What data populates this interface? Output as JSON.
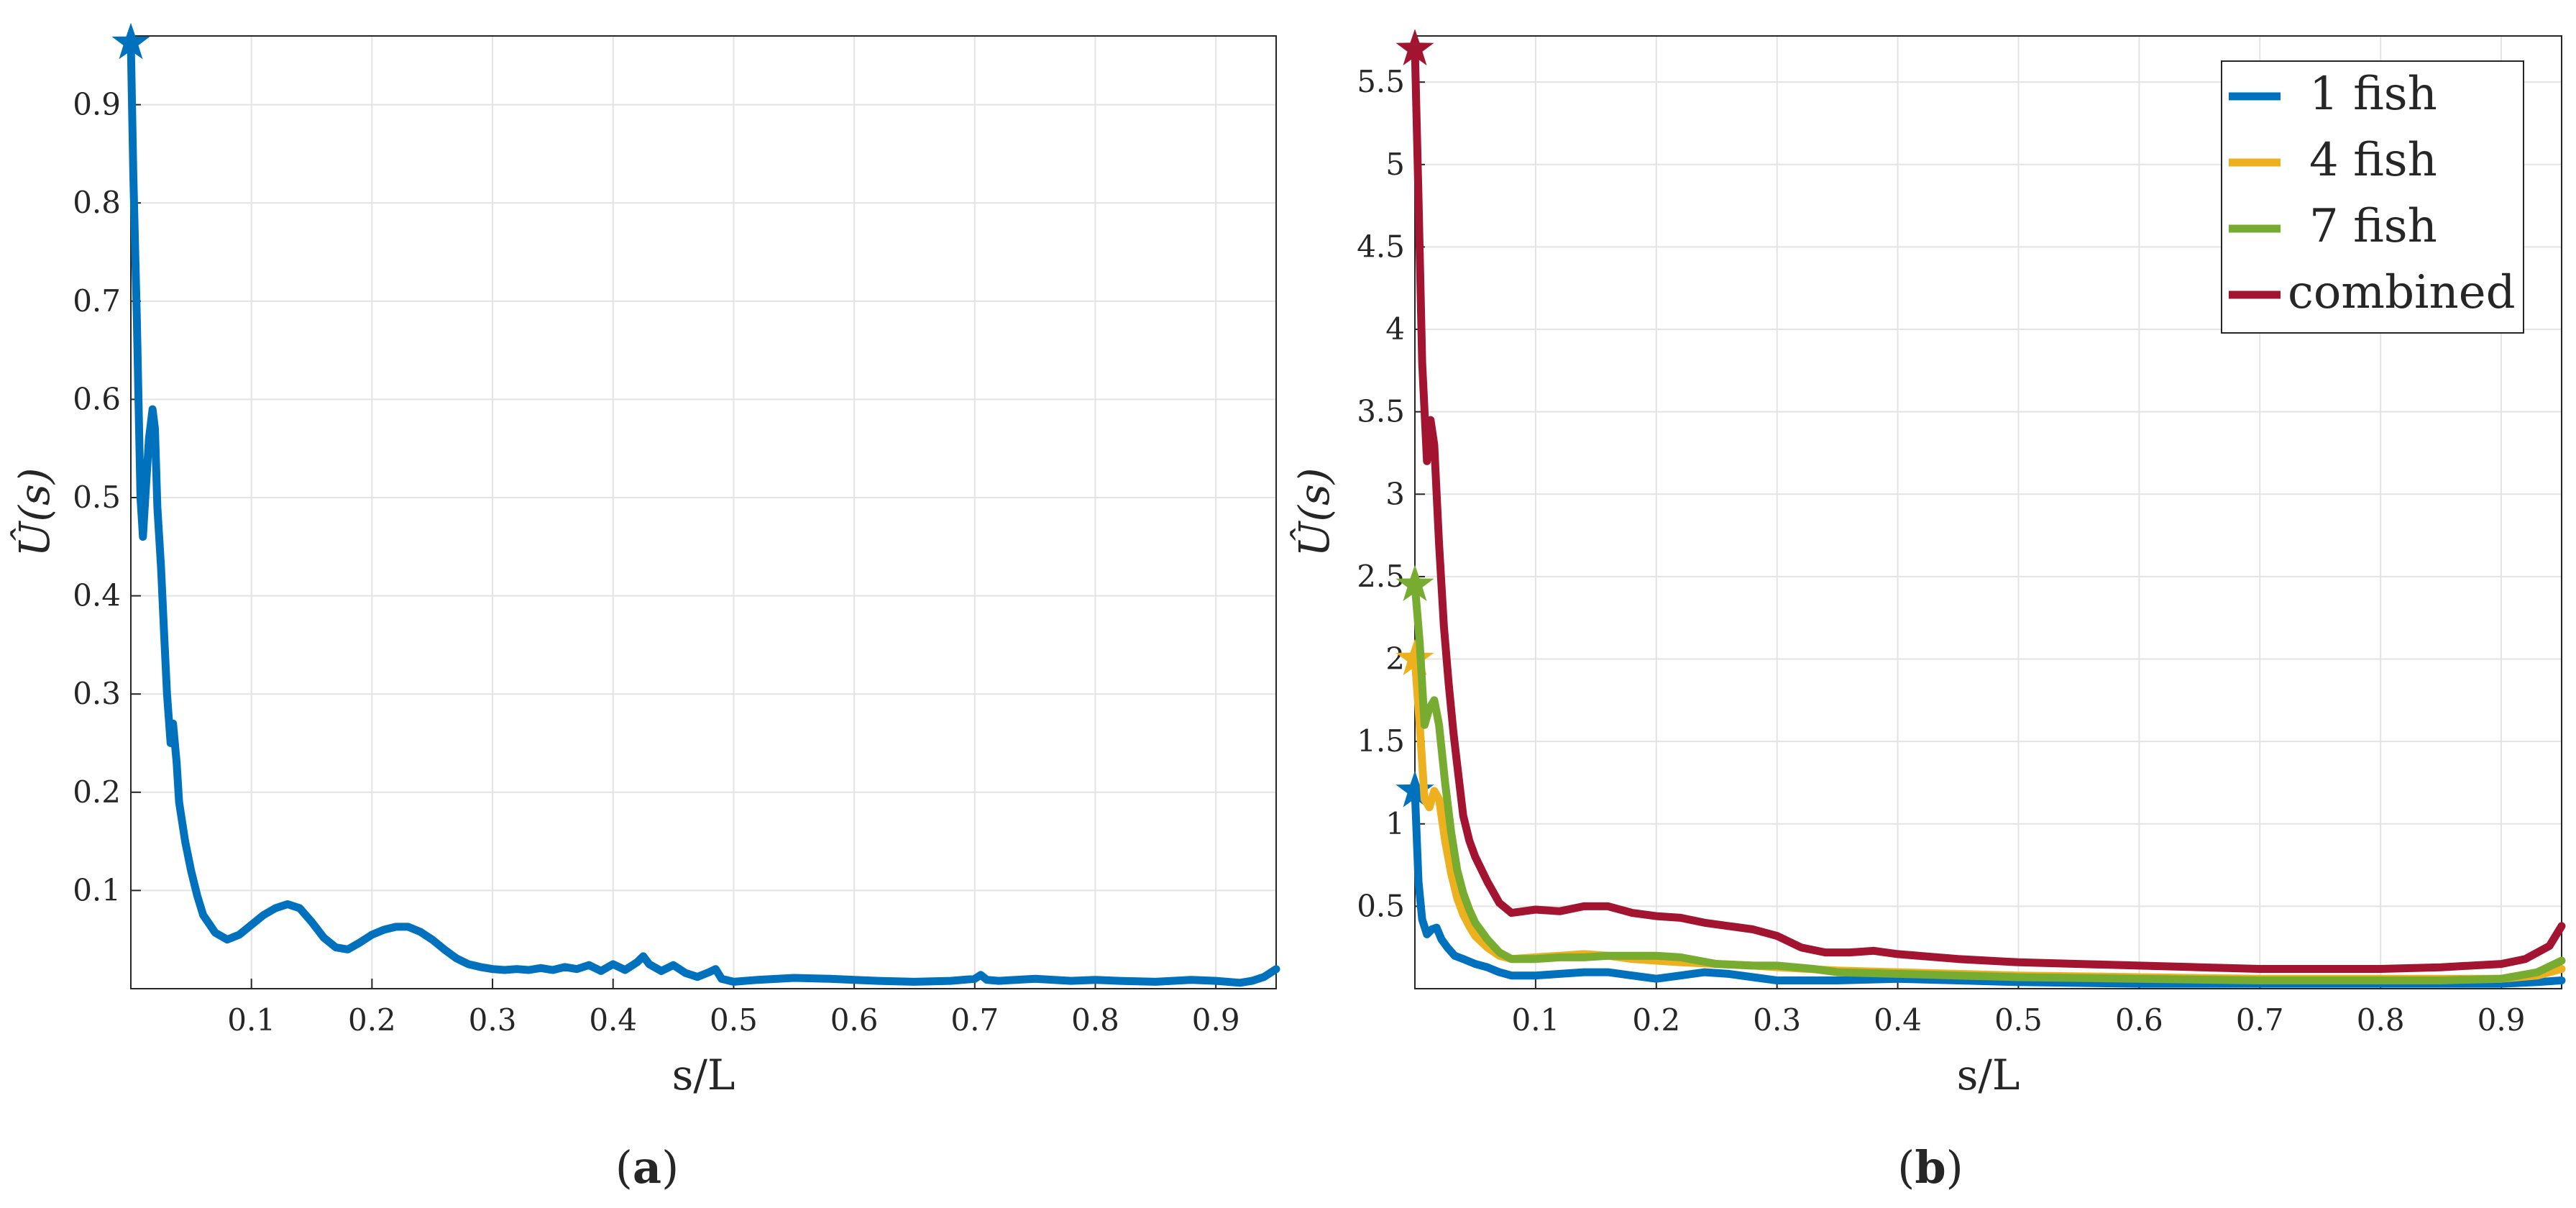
{
  "panels": [
    {
      "label_open": "(",
      "label_letter": "a",
      "label_close": ")",
      "chart_data": {
        "type": "line",
        "xlabel": "s/L",
        "ylabel": "Û(s)",
        "xlim": [
          0,
          0.95
        ],
        "ylim": [
          0,
          0.97
        ],
        "xticks": [
          0.1,
          0.2,
          0.3,
          0.4,
          0.5,
          0.6,
          0.7,
          0.8,
          0.9
        ],
        "yticks": [
          0.1,
          0.2,
          0.3,
          0.4,
          0.5,
          0.6,
          0.7,
          0.8,
          0.9
        ],
        "grid": true,
        "legend": null,
        "series": [
          {
            "color": "#0072BD",
            "marker_at_max": "star",
            "x": [
              0,
              0.002,
              0.005,
              0.008,
              0.01,
              0.012,
              0.015,
              0.018,
              0.02,
              0.022,
              0.025,
              0.028,
              0.03,
              0.033,
              0.035,
              0.038,
              0.04,
              0.045,
              0.05,
              0.055,
              0.06,
              0.07,
              0.08,
              0.09,
              0.1,
              0.11,
              0.12,
              0.13,
              0.14,
              0.15,
              0.16,
              0.17,
              0.18,
              0.19,
              0.2,
              0.21,
              0.22,
              0.23,
              0.24,
              0.25,
              0.26,
              0.27,
              0.28,
              0.29,
              0.3,
              0.31,
              0.32,
              0.33,
              0.34,
              0.35,
              0.36,
              0.37,
              0.38,
              0.39,
              0.4,
              0.41,
              0.42,
              0.425,
              0.43,
              0.44,
              0.45,
              0.46,
              0.47,
              0.48,
              0.485,
              0.49,
              0.5,
              0.52,
              0.55,
              0.58,
              0.6,
              0.62,
              0.65,
              0.68,
              0.7,
              0.705,
              0.71,
              0.72,
              0.75,
              0.78,
              0.8,
              0.82,
              0.85,
              0.88,
              0.9,
              0.92,
              0.93,
              0.94,
              0.95
            ],
            "y": [
              0.963,
              0.83,
              0.68,
              0.5,
              0.46,
              0.5,
              0.56,
              0.59,
              0.57,
              0.49,
              0.43,
              0.35,
              0.3,
              0.25,
              0.27,
              0.23,
              0.19,
              0.15,
              0.12,
              0.095,
              0.075,
              0.057,
              0.05,
              0.055,
              0.065,
              0.075,
              0.082,
              0.086,
              0.082,
              0.068,
              0.052,
              0.042,
              0.04,
              0.047,
              0.055,
              0.06,
              0.063,
              0.063,
              0.058,
              0.05,
              0.04,
              0.031,
              0.025,
              0.022,
              0.02,
              0.019,
              0.02,
              0.019,
              0.021,
              0.019,
              0.022,
              0.02,
              0.024,
              0.018,
              0.025,
              0.019,
              0.027,
              0.033,
              0.025,
              0.018,
              0.024,
              0.016,
              0.012,
              0.017,
              0.02,
              0.01,
              0.007,
              0.009,
              0.011,
              0.01,
              0.009,
              0.008,
              0.007,
              0.008,
              0.01,
              0.014,
              0.009,
              0.008,
              0.01,
              0.008,
              0.009,
              0.008,
              0.007,
              0.009,
              0.008,
              0.006,
              0.008,
              0.012,
              0.02
            ]
          }
        ]
      }
    },
    {
      "label_open": "(",
      "label_letter": "b",
      "label_close": ")",
      "chart_data": {
        "type": "line",
        "xlabel": "s/L",
        "ylabel": "Û(s)",
        "xlim": [
          0,
          0.95
        ],
        "ylim": [
          0,
          5.78
        ],
        "xticks": [
          0.1,
          0.2,
          0.3,
          0.4,
          0.5,
          0.6,
          0.7,
          0.8,
          0.9
        ],
        "yticks": [
          0.5,
          1,
          1.5,
          2,
          2.5,
          3,
          3.5,
          4,
          4.5,
          5,
          5.5
        ],
        "grid": true,
        "legend": "top-right",
        "series": [
          {
            "name": "1 fish",
            "color": "#0072BD",
            "marker_at_max": "star",
            "x": [
              0,
              0.003,
              0.006,
              0.01,
              0.014,
              0.018,
              0.022,
              0.027,
              0.033,
              0.04,
              0.05,
              0.06,
              0.07,
              0.08,
              0.1,
              0.12,
              0.14,
              0.16,
              0.18,
              0.2,
              0.22,
              0.24,
              0.26,
              0.28,
              0.3,
              0.32,
              0.35,
              0.4,
              0.45,
              0.5,
              0.6,
              0.7,
              0.8,
              0.9,
              0.93,
              0.95
            ],
            "y": [
              1.2,
              0.65,
              0.42,
              0.33,
              0.36,
              0.37,
              0.3,
              0.25,
              0.2,
              0.18,
              0.15,
              0.13,
              0.1,
              0.08,
              0.08,
              0.09,
              0.1,
              0.1,
              0.08,
              0.06,
              0.08,
              0.1,
              0.09,
              0.07,
              0.05,
              0.05,
              0.05,
              0.06,
              0.05,
              0.04,
              0.03,
              0.03,
              0.03,
              0.03,
              0.04,
              0.05
            ]
          },
          {
            "name": "4 fish",
            "color": "#EDB120",
            "marker_at_max": "star",
            "x": [
              0,
              0.004,
              0.008,
              0.012,
              0.016,
              0.02,
              0.025,
              0.03,
              0.035,
              0.04,
              0.045,
              0.05,
              0.06,
              0.07,
              0.08,
              0.1,
              0.12,
              0.14,
              0.16,
              0.18,
              0.2,
              0.22,
              0.25,
              0.28,
              0.3,
              0.35,
              0.4,
              0.45,
              0.5,
              0.6,
              0.7,
              0.8,
              0.85,
              0.9,
              0.93,
              0.95
            ],
            "y": [
              2.0,
              1.6,
              1.15,
              1.1,
              1.2,
              1.15,
              0.9,
              0.7,
              0.55,
              0.45,
              0.38,
              0.32,
              0.25,
              0.2,
              0.18,
              0.19,
              0.2,
              0.21,
              0.2,
              0.18,
              0.17,
              0.16,
              0.15,
              0.14,
              0.13,
              0.11,
              0.1,
              0.09,
              0.08,
              0.07,
              0.06,
              0.06,
              0.06,
              0.06,
              0.08,
              0.12
            ]
          },
          {
            "name": "7 fish",
            "color": "#77AC30",
            "marker_at_max": "star",
            "x": [
              0,
              0.004,
              0.008,
              0.012,
              0.016,
              0.02,
              0.025,
              0.03,
              0.035,
              0.04,
              0.045,
              0.05,
              0.06,
              0.07,
              0.08,
              0.1,
              0.12,
              0.14,
              0.16,
              0.18,
              0.2,
              0.22,
              0.25,
              0.28,
              0.3,
              0.33,
              0.35,
              0.4,
              0.45,
              0.5,
              0.6,
              0.7,
              0.8,
              0.85,
              0.9,
              0.93,
              0.95
            ],
            "y": [
              2.45,
              2.1,
              1.6,
              1.7,
              1.75,
              1.6,
              1.25,
              0.95,
              0.72,
              0.58,
              0.48,
              0.4,
              0.3,
              0.22,
              0.18,
              0.18,
              0.19,
              0.19,
              0.2,
              0.2,
              0.2,
              0.19,
              0.15,
              0.14,
              0.14,
              0.12,
              0.1,
              0.09,
              0.08,
              0.07,
              0.06,
              0.05,
              0.05,
              0.05,
              0.06,
              0.1,
              0.17
            ]
          },
          {
            "name": "combined",
            "color": "#A2142F",
            "marker_at_max": "star",
            "x": [
              0,
              0.003,
              0.006,
              0.01,
              0.013,
              0.016,
              0.02,
              0.024,
              0.028,
              0.032,
              0.036,
              0.04,
              0.045,
              0.05,
              0.06,
              0.07,
              0.08,
              0.09,
              0.1,
              0.12,
              0.14,
              0.16,
              0.18,
              0.2,
              0.22,
              0.24,
              0.26,
              0.28,
              0.3,
              0.32,
              0.34,
              0.36,
              0.38,
              0.4,
              0.45,
              0.5,
              0.55,
              0.6,
              0.65,
              0.7,
              0.75,
              0.8,
              0.85,
              0.9,
              0.92,
              0.94,
              0.95
            ],
            "y": [
              5.7,
              4.8,
              3.8,
              3.2,
              3.45,
              3.3,
              2.7,
              2.2,
              1.85,
              1.55,
              1.3,
              1.05,
              0.9,
              0.8,
              0.65,
              0.52,
              0.46,
              0.47,
              0.48,
              0.47,
              0.5,
              0.5,
              0.46,
              0.44,
              0.43,
              0.4,
              0.38,
              0.36,
              0.32,
              0.25,
              0.22,
              0.22,
              0.23,
              0.21,
              0.18,
              0.16,
              0.15,
              0.14,
              0.13,
              0.12,
              0.12,
              0.12,
              0.13,
              0.15,
              0.18,
              0.26,
              0.38
            ]
          }
        ]
      }
    }
  ]
}
